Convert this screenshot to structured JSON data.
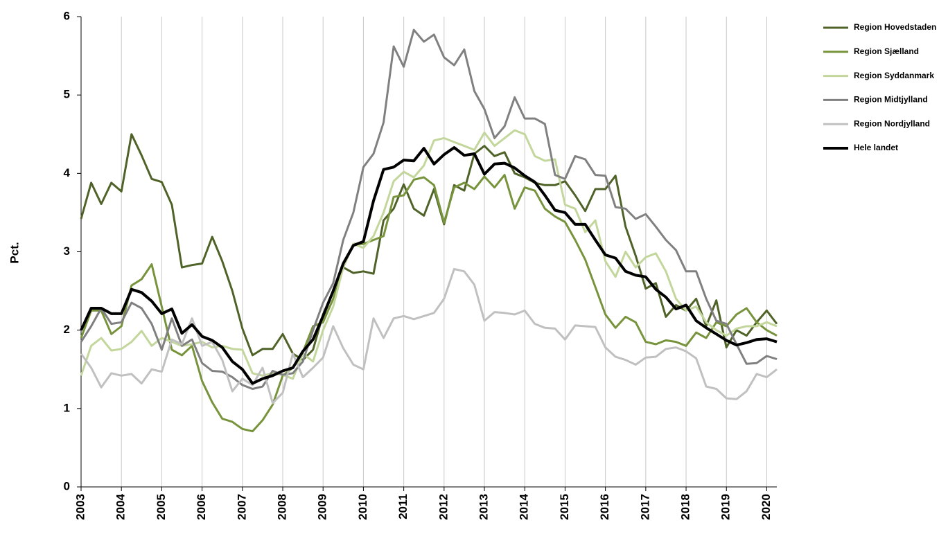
{
  "chart_data": {
    "type": "line",
    "y_label": "Pct.",
    "x": [
      2003,
      2003.25,
      2003.5,
      2003.75,
      2004,
      2004.25,
      2004.5,
      2004.75,
      2005,
      2005.25,
      2005.5,
      2005.75,
      2006,
      2006.25,
      2006.5,
      2006.75,
      2007,
      2007.25,
      2007.5,
      2007.75,
      2008,
      2008.25,
      2008.5,
      2008.75,
      2009,
      2009.25,
      2009.5,
      2009.75,
      2010,
      2010.25,
      2010.5,
      2010.75,
      2011,
      2011.25,
      2011.5,
      2011.75,
      2012,
      2012.25,
      2012.5,
      2012.75,
      2013,
      2013.25,
      2013.5,
      2013.75,
      2014,
      2014.25,
      2014.5,
      2014.75,
      2015,
      2015.25,
      2015.5,
      2015.75,
      2016,
      2016.25,
      2016.5,
      2016.75,
      2017,
      2017.25,
      2017.5,
      2017.75,
      2018,
      2018.25,
      2018.5,
      2018.75,
      2019,
      2019.25,
      2019.5,
      2019.75,
      2020,
      2020.25
    ],
    "xlim": [
      2003,
      2020.25
    ],
    "xticks": [
      2003,
      2004,
      2005,
      2006,
      2007,
      2008,
      2009,
      2010,
      2011,
      2012,
      2013,
      2014,
      2015,
      2016,
      2017,
      2018,
      2019,
      2020
    ],
    "ylim": [
      0,
      6
    ],
    "yticks": [
      0,
      1,
      2,
      3,
      4,
      5,
      6
    ],
    "grid": "x",
    "legend": "right",
    "series": [
      {
        "name": "Region Hovedstaden",
        "color": "#4f6228",
        "values": [
          3.42,
          3.88,
          3.61,
          3.88,
          3.77,
          4.5,
          4.23,
          3.93,
          3.89,
          3.6,
          2.8,
          2.83,
          2.85,
          3.19,
          2.88,
          2.5,
          2.02,
          1.68,
          1.76,
          1.76,
          1.95,
          1.7,
          1.62,
          1.75,
          2.2,
          2.5,
          2.8,
          2.73,
          2.75,
          2.72,
          3.4,
          3.55,
          3.86,
          3.55,
          3.46,
          3.8,
          3.35,
          3.85,
          3.78,
          4.25,
          4.35,
          4.22,
          4.27,
          4.0,
          3.95,
          3.88,
          3.85,
          3.85,
          3.9,
          3.72,
          3.52,
          3.8,
          3.8,
          3.97,
          3.32,
          2.95,
          2.53,
          2.6,
          2.17,
          2.32,
          2.25,
          2.4,
          2.05,
          2.38,
          1.78,
          2.0,
          1.93,
          2.1,
          2.25,
          2.08
        ]
      },
      {
        "name": "Region Sjælland",
        "color": "#77933c",
        "values": [
          1.9,
          2.25,
          2.25,
          1.95,
          2.05,
          2.57,
          2.65,
          2.84,
          2.3,
          1.75,
          1.68,
          1.8,
          1.35,
          1.08,
          0.87,
          0.83,
          0.74,
          0.71,
          0.85,
          1.05,
          1.42,
          1.52,
          1.72,
          2.05,
          2.1,
          2.4,
          2.8,
          3.1,
          3.1,
          3.15,
          3.2,
          3.7,
          3.72,
          3.92,
          3.95,
          3.85,
          3.37,
          3.82,
          3.88,
          3.8,
          3.96,
          3.82,
          3.98,
          3.55,
          3.82,
          3.78,
          3.55,
          3.45,
          3.38,
          3.15,
          2.9,
          2.55,
          2.2,
          2.03,
          2.17,
          2.1,
          1.85,
          1.82,
          1.87,
          1.85,
          1.8,
          1.97,
          1.9,
          2.1,
          2.05,
          2.2,
          2.28,
          2.1,
          2.0,
          1.93
        ]
      },
      {
        "name": "Region Syddanmark",
        "color": "#c3d69b",
        "values": [
          1.42,
          1.8,
          1.9,
          1.74,
          1.76,
          1.85,
          1.99,
          1.8,
          1.9,
          1.85,
          1.8,
          1.82,
          1.85,
          1.78,
          1.8,
          1.76,
          1.75,
          1.45,
          1.42,
          1.45,
          1.43,
          1.38,
          1.7,
          1.6,
          2.0,
          2.3,
          2.8,
          3.1,
          3.05,
          3.2,
          3.5,
          3.9,
          4.02,
          3.95,
          4.1,
          4.42,
          4.45,
          4.4,
          4.35,
          4.3,
          4.52,
          4.35,
          4.45,
          4.55,
          4.5,
          4.22,
          4.16,
          4.18,
          3.6,
          3.55,
          3.25,
          3.4,
          2.88,
          2.68,
          3.0,
          2.8,
          2.93,
          2.98,
          2.75,
          2.4,
          2.25,
          2.3,
          2.1,
          2.0,
          1.93,
          2.02,
          2.05,
          2.05,
          2.1,
          2.05
        ]
      },
      {
        "name": "Region Midtjylland",
        "color": "#808080",
        "values": [
          1.85,
          2.05,
          2.28,
          2.08,
          2.1,
          2.35,
          2.28,
          2.08,
          1.75,
          2.15,
          1.8,
          1.88,
          1.58,
          1.48,
          1.47,
          1.4,
          1.3,
          1.25,
          1.28,
          1.48,
          1.43,
          1.45,
          1.6,
          2.0,
          2.35,
          2.6,
          3.15,
          3.5,
          4.08,
          4.25,
          4.65,
          5.62,
          5.36,
          5.83,
          5.68,
          5.77,
          5.48,
          5.38,
          5.58,
          5.05,
          4.82,
          4.45,
          4.6,
          4.97,
          4.7,
          4.7,
          4.63,
          3.98,
          3.93,
          4.22,
          4.18,
          3.98,
          3.97,
          3.57,
          3.55,
          3.42,
          3.48,
          3.32,
          3.15,
          3.02,
          2.75,
          2.75,
          2.4,
          2.12,
          2.08,
          1.82,
          1.57,
          1.58,
          1.67,
          1.63
        ]
      },
      {
        "name": "Region Nordjylland",
        "color": "#c0c0c0",
        "values": [
          1.7,
          1.52,
          1.27,
          1.45,
          1.42,
          1.44,
          1.32,
          1.5,
          1.47,
          1.88,
          1.82,
          2.15,
          1.8,
          1.85,
          1.62,
          1.22,
          1.38,
          1.3,
          1.52,
          1.07,
          1.2,
          1.7,
          1.4,
          1.52,
          1.65,
          2.05,
          1.77,
          1.56,
          1.5,
          2.15,
          1.9,
          2.15,
          2.18,
          2.14,
          2.18,
          2.22,
          2.4,
          2.78,
          2.75,
          2.58,
          2.12,
          2.23,
          2.22,
          2.2,
          2.25,
          2.08,
          2.03,
          2.02,
          1.88,
          2.06,
          2.05,
          2.04,
          1.78,
          1.66,
          1.62,
          1.56,
          1.65,
          1.66,
          1.76,
          1.78,
          1.73,
          1.64,
          1.28,
          1.25,
          1.13,
          1.12,
          1.22,
          1.44,
          1.4,
          1.5
        ]
      },
      {
        "name": "Hele landet",
        "color": "#000000",
        "values": [
          2.0,
          2.28,
          2.28,
          2.21,
          2.21,
          2.52,
          2.48,
          2.37,
          2.21,
          2.27,
          1.96,
          2.07,
          1.92,
          1.87,
          1.78,
          1.6,
          1.5,
          1.32,
          1.38,
          1.42,
          1.48,
          1.52,
          1.73,
          1.88,
          2.18,
          2.5,
          2.85,
          3.08,
          3.13,
          3.65,
          4.05,
          4.08,
          4.17,
          4.16,
          4.32,
          4.12,
          4.24,
          4.33,
          4.23,
          4.25,
          3.99,
          4.12,
          4.13,
          4.07,
          3.97,
          3.89,
          3.72,
          3.53,
          3.5,
          3.35,
          3.35,
          3.15,
          2.96,
          2.92,
          2.75,
          2.7,
          2.68,
          2.52,
          2.42,
          2.27,
          2.32,
          2.12,
          2.03,
          1.95,
          1.87,
          1.81,
          1.84,
          1.88,
          1.89,
          1.85
        ]
      }
    ]
  }
}
